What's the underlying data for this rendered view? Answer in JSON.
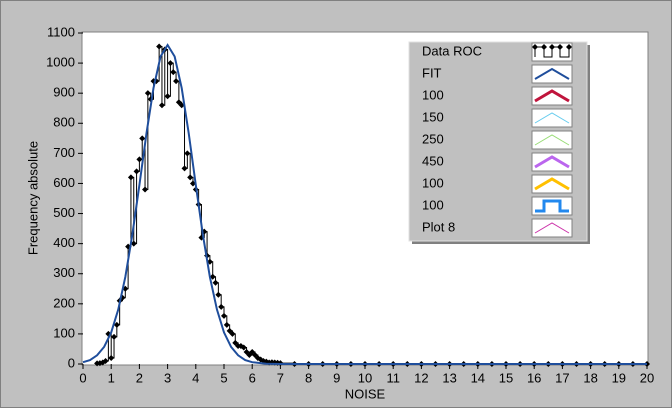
{
  "chart_data": {
    "type": "line",
    "xlabel": "NOISE",
    "ylabel": "Frequency absolute",
    "xlim": [
      0,
      20
    ],
    "xticks": [
      0,
      1,
      2,
      3,
      4,
      5,
      6,
      7,
      8,
      9,
      10,
      11,
      12,
      13,
      14,
      15,
      16,
      17,
      18,
      19,
      20
    ],
    "ylim": [
      0,
      1100
    ],
    "yticks": [
      0,
      100,
      200,
      300,
      400,
      500,
      600,
      700,
      800,
      900,
      1000,
      1100
    ],
    "series": [
      {
        "name": "Data ROC",
        "color": "#000000",
        "line_width": 1,
        "step": true,
        "markers": true,
        "x": [
          0.5,
          0.6,
          0.7,
          0.8,
          0.9,
          1.0,
          1.1,
          1.2,
          1.3,
          1.4,
          1.5,
          1.6,
          1.7,
          1.8,
          1.9,
          2.0,
          2.1,
          2.2,
          2.3,
          2.4,
          2.5,
          2.6,
          2.7,
          2.8,
          2.9,
          3.0,
          3.1,
          3.2,
          3.3,
          3.4,
          3.5,
          3.6,
          3.7,
          3.8,
          3.9,
          4.0,
          4.1,
          4.2,
          4.3,
          4.4,
          4.5,
          4.6,
          4.7,
          4.8,
          4.9,
          5.0,
          5.1,
          5.2,
          5.3,
          5.4,
          5.5,
          5.6,
          5.7,
          5.8,
          5.9,
          6.0,
          6.1,
          6.2,
          6.3,
          6.4,
          6.5,
          6.6,
          6.7,
          6.8,
          6.9,
          7.0,
          7.5,
          8,
          8.5,
          9,
          9.5,
          10,
          10.5,
          11,
          11.5,
          12,
          12.5,
          13,
          13.5,
          14,
          14.5,
          15,
          15.5,
          16,
          16.5,
          17,
          17.5,
          18,
          18.5,
          19,
          19.5,
          20
        ],
        "values": [
          2,
          3,
          5,
          10,
          100,
          20,
          90,
          130,
          210,
          220,
          250,
          390,
          620,
          400,
          640,
          680,
          750,
          580,
          900,
          880,
          940,
          940,
          1055,
          860,
          1045,
          890,
          1000,
          970,
          940,
          870,
          860,
          650,
          700,
          620,
          600,
          580,
          530,
          420,
          440,
          360,
          340,
          290,
          270,
          230,
          190,
          160,
          130,
          110,
          100,
          70,
          60,
          60,
          55,
          40,
          30,
          40,
          30,
          20,
          15,
          10,
          8,
          5,
          6,
          5,
          4,
          3,
          0,
          0,
          0,
          0,
          0,
          0,
          0,
          0,
          0,
          0,
          0,
          0,
          0,
          0,
          0,
          0,
          0,
          0,
          0,
          0,
          0,
          0,
          0,
          0,
          0,
          0
        ]
      },
      {
        "name": "FIT",
        "color": "#1f4e9c",
        "line_width": 2,
        "step": false,
        "markers": false,
        "x": [
          0,
          0.25,
          0.5,
          0.75,
          1,
          1.25,
          1.5,
          1.75,
          2,
          2.25,
          2.5,
          2.75,
          3,
          3.25,
          3.5,
          3.75,
          4,
          4.25,
          4.5,
          4.75,
          5,
          5.25,
          5.5,
          5.75,
          6,
          6.5,
          7,
          20
        ],
        "values": [
          6,
          13,
          29,
          57,
          105,
          181,
          289,
          430,
          595,
          766,
          917,
          1022,
          1060,
          1022,
          917,
          766,
          595,
          430,
          289,
          181,
          105,
          57,
          29,
          13,
          6,
          1,
          0,
          0
        ]
      },
      {
        "name": "100",
        "color": "#c0143c",
        "line_width": 3,
        "step": false,
        "markers": false
      },
      {
        "name": "150",
        "color": "#66ccee",
        "line_width": 1,
        "step": false,
        "markers": false
      },
      {
        "name": "250",
        "color": "#99dd77",
        "line_width": 1,
        "step": false,
        "markers": false
      },
      {
        "name": "450",
        "color": "#bb66ee",
        "line_width": 3,
        "step": false,
        "markers": false
      },
      {
        "name": "100",
        "color": "#ffc000",
        "line_width": 3,
        "step": false,
        "markers": false
      },
      {
        "name": "100",
        "color": "#2288ee",
        "line_width": 3,
        "step": true,
        "markers": false
      },
      {
        "name": "Plot 8",
        "color": "#cc33aa",
        "line_width": 1,
        "step": false,
        "markers": false
      }
    ]
  }
}
